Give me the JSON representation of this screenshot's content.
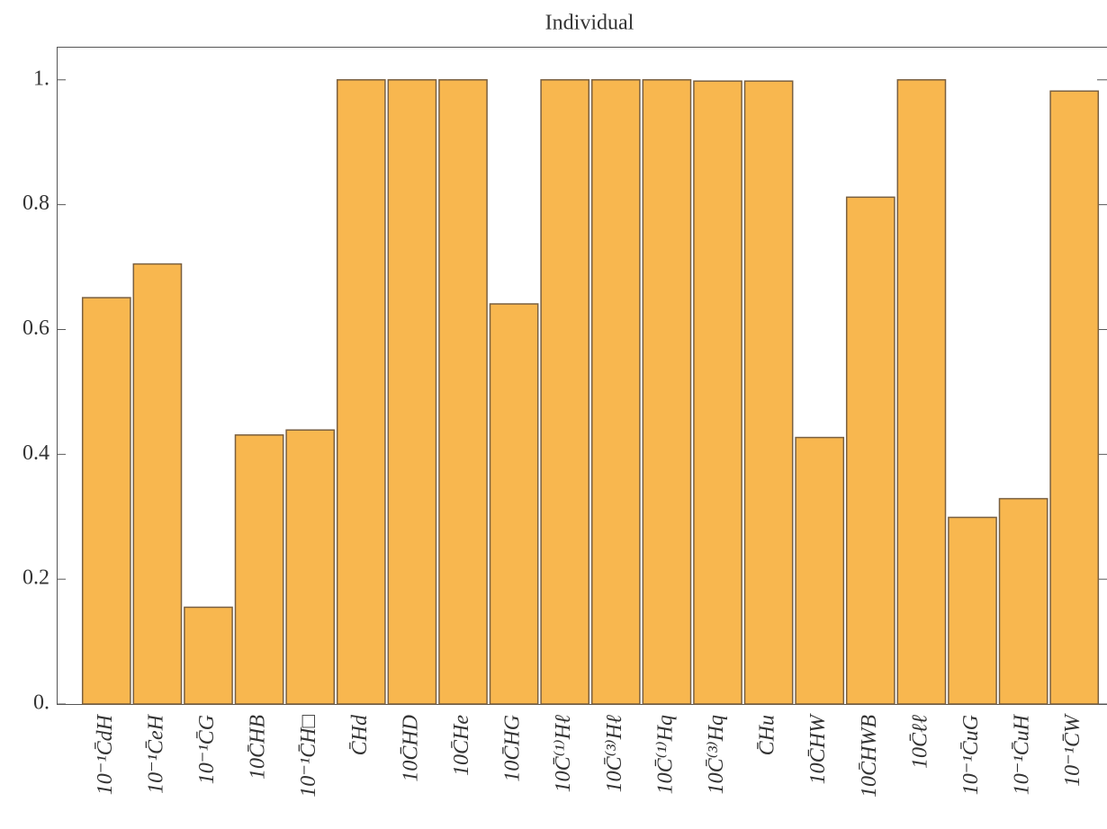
{
  "chart_data": {
    "type": "bar",
    "title": "Individual",
    "categories": [
      "10⁻¹C̄dH",
      "10⁻¹C̄eH",
      "10⁻¹C̄G",
      "10C̄HB",
      "10⁻¹C̄H□",
      "C̄Hd",
      "10C̄HD",
      "10C̄He",
      "10C̄HG",
      "10C̄⁽¹⁾Hℓ",
      "10C̄⁽³⁾Hℓ",
      "10C̄⁽¹⁾Hq",
      "10C̄⁽³⁾Hq",
      "C̄Hu",
      "10C̄HW",
      "10C̄HWB",
      "10C̄ℓℓ",
      "10⁻¹C̄uG",
      "10⁻¹C̄uH",
      "10⁻¹C̄W"
    ],
    "values": [
      0.651,
      0.705,
      0.155,
      0.431,
      0.439,
      1.0,
      1.0,
      1.0,
      0.641,
      1.0,
      1.0,
      1.0,
      0.998,
      0.998,
      0.427,
      0.812,
      1.0,
      0.299,
      0.329,
      0.982
    ],
    "color": "#f8b74f",
    "ylim": [
      0,
      1.053
    ],
    "yticks": [
      {
        "value": 0,
        "label": "0."
      },
      0.2,
      0.4,
      0.6,
      0.8,
      {
        "value": 1,
        "label": "1."
      }
    ]
  }
}
